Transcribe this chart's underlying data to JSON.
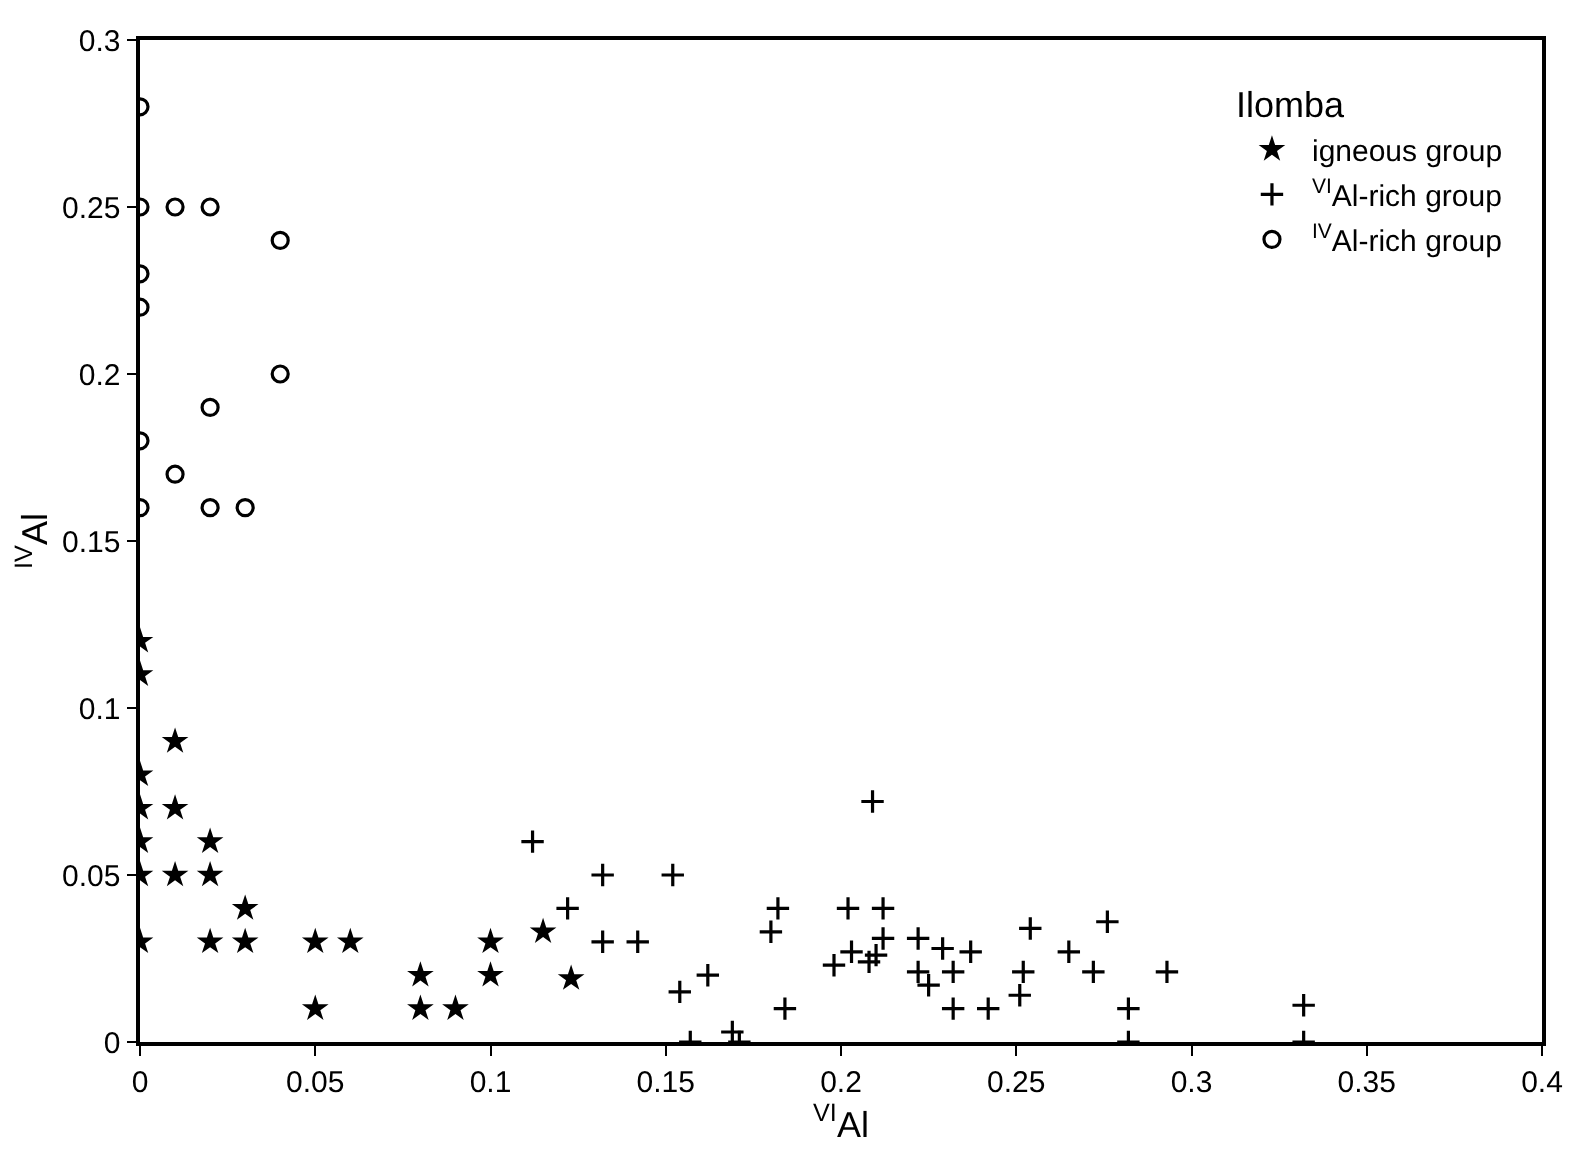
{
  "chart_data": {
    "type": "scatter",
    "xlabel": "$^{VI}$Al",
    "ylabel": "$^{IV}$Al",
    "legend_title": "Ilomba",
    "legend": "top right",
    "grid": false,
    "xlim": [
      0,
      0.4
    ],
    "xticks": [
      0,
      0.05,
      0.1,
      0.15,
      0.2,
      0.25,
      0.3,
      0.35,
      0.4
    ],
    "ylim": [
      0,
      0.3
    ],
    "yticks": [
      0,
      0.05,
      0.1,
      0.15,
      0.2,
      0.25,
      0.3
    ],
    "series": [
      {
        "name": "igneous group",
        "color": "#000000",
        "marker": "star",
        "x": [
          0,
          0,
          0,
          0,
          0,
          0,
          0,
          0.01,
          0.01,
          0.01,
          0.02,
          0.02,
          0.02,
          0.03,
          0.03,
          0.05,
          0.05,
          0.06,
          0.08,
          0.08,
          0.09,
          0.1,
          0.1,
          0.115,
          0.123
        ],
        "values": [
          0.12,
          0.11,
          0.08,
          0.07,
          0.06,
          0.05,
          0.03,
          0.09,
          0.07,
          0.05,
          0.06,
          0.05,
          0.03,
          0.04,
          0.03,
          0.03,
          0.01,
          0.03,
          0.02,
          0.01,
          0.01,
          0.03,
          0.02,
          0.033,
          0.019
        ]
      },
      {
        "name": "$^{VI}$Al-rich group",
        "color": "#000000",
        "marker": "cross",
        "x": [
          0.112,
          0.132,
          0.152,
          0.122,
          0.132,
          0.142,
          0.154,
          0.162,
          0.157,
          0.169,
          0.171,
          0.209,
          0.182,
          0.18,
          0.184,
          0.202,
          0.212,
          0.198,
          0.203,
          0.208,
          0.21,
          0.212,
          0.222,
          0.222,
          0.225,
          0.229,
          0.232,
          0.232,
          0.237,
          0.242,
          0.252,
          0.251,
          0.254,
          0.265,
          0.276,
          0.272,
          0.282,
          0.282,
          0.293,
          0.332,
          0.332
        ],
        "values": [
          0.06,
          0.05,
          0.05,
          0.04,
          0.03,
          0.03,
          0.015,
          0.02,
          0,
          0.003,
          0,
          0.072,
          0.04,
          0.033,
          0.01,
          0.04,
          0.04,
          0.023,
          0.027,
          0.024,
          0.026,
          0.031,
          0.031,
          0.021,
          0.017,
          0.028,
          0.021,
          0.01,
          0.027,
          0.01,
          0.021,
          0.014,
          0.034,
          0.027,
          0.036,
          0.021,
          0.01,
          0,
          0.021,
          0.011,
          0
        ]
      },
      {
        "name": "$^{IV}$Al-rich group",
        "color": "#000000",
        "marker": "circle",
        "x": [
          0,
          0,
          0,
          0,
          0,
          0,
          0.01,
          0.01,
          0.02,
          0.02,
          0.02,
          0.03,
          0.04,
          0.04
        ],
        "values": [
          0.28,
          0.25,
          0.23,
          0.22,
          0.18,
          0.16,
          0.25,
          0.17,
          0.25,
          0.19,
          0.16,
          0.16,
          0.24,
          0.2
        ]
      }
    ]
  }
}
